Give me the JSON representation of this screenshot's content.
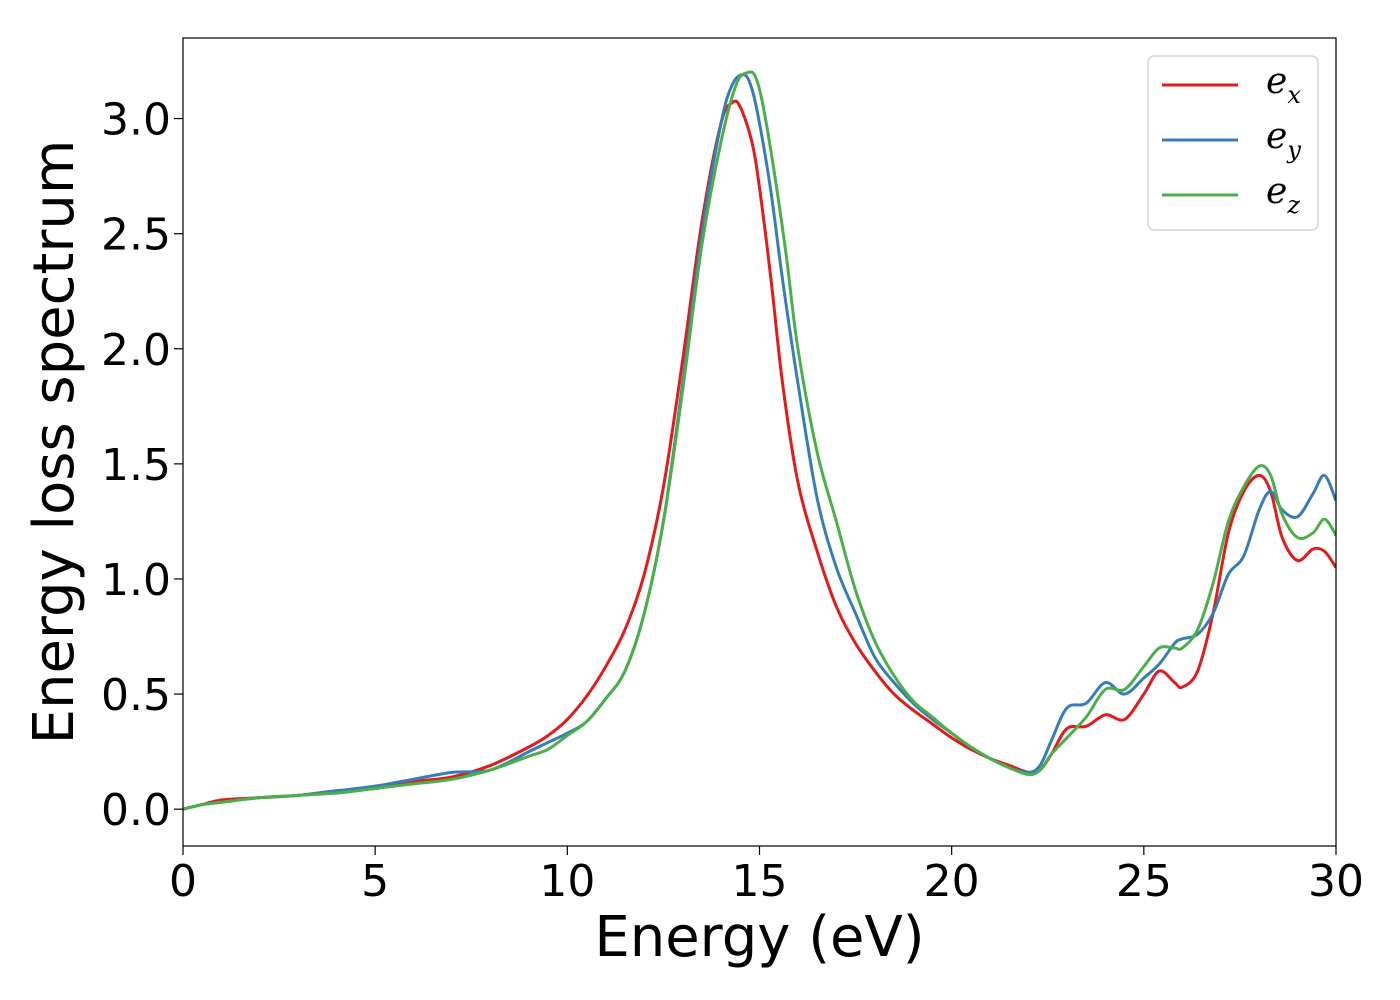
{
  "chart_data": {
    "type": "line",
    "title": "",
    "xlabel": "Energy (eV)",
    "ylabel": "Energy loss spectrum",
    "xlim": [
      0,
      30
    ],
    "ylim": [
      -0.16,
      3.35
    ],
    "xticks": [
      0,
      5,
      10,
      15,
      20,
      25,
      30
    ],
    "xtick_labels": [
      "0",
      "5",
      "10",
      "15",
      "20",
      "25",
      "30"
    ],
    "yticks": [
      0.0,
      0.5,
      1.0,
      1.5,
      2.0,
      2.5,
      3.0
    ],
    "ytick_labels": [
      "0.0",
      "0.5",
      "1.0",
      "1.5",
      "2.0",
      "2.5",
      "3.0"
    ],
    "grid": false,
    "legend_position": "top-right",
    "series": [
      {
        "name": "e_x",
        "label_base": "e",
        "label_sub": "x",
        "color": "#e41a1c",
        "x": [
          0,
          0.5,
          1,
          2,
          3,
          4,
          5,
          6,
          7,
          8,
          9,
          9.5,
          10,
          10.5,
          11,
          11.5,
          12,
          12.5,
          13,
          13.5,
          14,
          14.3,
          14.5,
          14.8,
          15,
          15.3,
          15.6,
          16,
          16.5,
          17,
          17.5,
          18,
          18.5,
          19,
          19.5,
          20,
          20.5,
          21,
          21.5,
          22,
          22.3,
          22.6,
          23,
          23.5,
          24,
          24.5,
          25,
          25.4,
          25.8,
          26,
          26.4,
          26.8,
          27.2,
          27.6,
          28,
          28.3,
          28.6,
          29,
          29.4,
          29.7,
          30
        ],
        "y": [
          0.0,
          0.02,
          0.04,
          0.05,
          0.06,
          0.08,
          0.09,
          0.12,
          0.14,
          0.19,
          0.27,
          0.32,
          0.39,
          0.49,
          0.62,
          0.78,
          1.02,
          1.4,
          1.95,
          2.55,
          2.98,
          3.07,
          3.05,
          2.9,
          2.7,
          2.3,
          1.85,
          1.42,
          1.12,
          0.88,
          0.72,
          0.6,
          0.5,
          0.43,
          0.37,
          0.31,
          0.26,
          0.22,
          0.19,
          0.16,
          0.17,
          0.24,
          0.35,
          0.36,
          0.41,
          0.39,
          0.5,
          0.6,
          0.55,
          0.53,
          0.6,
          0.85,
          1.2,
          1.38,
          1.45,
          1.38,
          1.18,
          1.08,
          1.13,
          1.12,
          1.05
        ]
      },
      {
        "name": "e_y",
        "label_base": "e",
        "label_sub": "y",
        "color": "#377eb8",
        "x": [
          0,
          0.5,
          1,
          2,
          3,
          4,
          5,
          6,
          7,
          8,
          9,
          9.5,
          10,
          10.5,
          11,
          11.5,
          12,
          12.5,
          13,
          13.5,
          14,
          14.3,
          14.6,
          14.8,
          15,
          15.3,
          15.6,
          16,
          16.5,
          17,
          17.5,
          18,
          18.5,
          19,
          19.5,
          20,
          20.5,
          21,
          21.5,
          22,
          22.3,
          22.6,
          23,
          23.5,
          24,
          24.5,
          25,
          25.4,
          25.8,
          26,
          26.4,
          26.8,
          27.2,
          27.6,
          28,
          28.3,
          28.6,
          29,
          29.4,
          29.7,
          30
        ],
        "y": [
          0.0,
          0.02,
          0.03,
          0.05,
          0.06,
          0.08,
          0.1,
          0.13,
          0.16,
          0.17,
          0.25,
          0.29,
          0.33,
          0.38,
          0.48,
          0.6,
          0.85,
          1.25,
          1.85,
          2.5,
          2.98,
          3.15,
          3.19,
          3.13,
          2.98,
          2.68,
          2.3,
          1.85,
          1.35,
          1.05,
          0.85,
          0.66,
          0.55,
          0.46,
          0.39,
          0.33,
          0.27,
          0.22,
          0.18,
          0.16,
          0.19,
          0.3,
          0.44,
          0.46,
          0.55,
          0.5,
          0.57,
          0.63,
          0.72,
          0.74,
          0.76,
          0.85,
          1.02,
          1.1,
          1.3,
          1.38,
          1.3,
          1.27,
          1.37,
          1.45,
          1.34
        ]
      },
      {
        "name": "e_z",
        "label_base": "e",
        "label_sub": "z",
        "color": "#4daf4a",
        "x": [
          0,
          0.5,
          1,
          2,
          3,
          4,
          5,
          6,
          7,
          8,
          9,
          9.5,
          10,
          10.5,
          11,
          11.5,
          12,
          12.5,
          13,
          13.5,
          14,
          14.4,
          14.7,
          14.9,
          15.1,
          15.4,
          15.7,
          16,
          16.5,
          17,
          17.5,
          18,
          18.5,
          19,
          19.5,
          20,
          20.5,
          21,
          21.5,
          22,
          22.3,
          22.6,
          23,
          23.5,
          24,
          24.5,
          25,
          25.4,
          25.8,
          26,
          26.4,
          26.8,
          27.2,
          27.6,
          28,
          28.3,
          28.6,
          29,
          29.4,
          29.7,
          30
        ],
        "y": [
          0.0,
          0.02,
          0.03,
          0.05,
          0.06,
          0.07,
          0.09,
          0.11,
          0.13,
          0.17,
          0.23,
          0.26,
          0.32,
          0.38,
          0.48,
          0.6,
          0.85,
          1.25,
          1.82,
          2.45,
          2.9,
          3.15,
          3.2,
          3.18,
          3.05,
          2.75,
          2.4,
          2.0,
          1.55,
          1.25,
          0.95,
          0.73,
          0.58,
          0.47,
          0.4,
          0.33,
          0.27,
          0.22,
          0.18,
          0.15,
          0.17,
          0.24,
          0.31,
          0.4,
          0.52,
          0.52,
          0.62,
          0.7,
          0.7,
          0.7,
          0.78,
          0.98,
          1.25,
          1.4,
          1.49,
          1.45,
          1.28,
          1.18,
          1.2,
          1.26,
          1.19
        ]
      }
    ]
  }
}
